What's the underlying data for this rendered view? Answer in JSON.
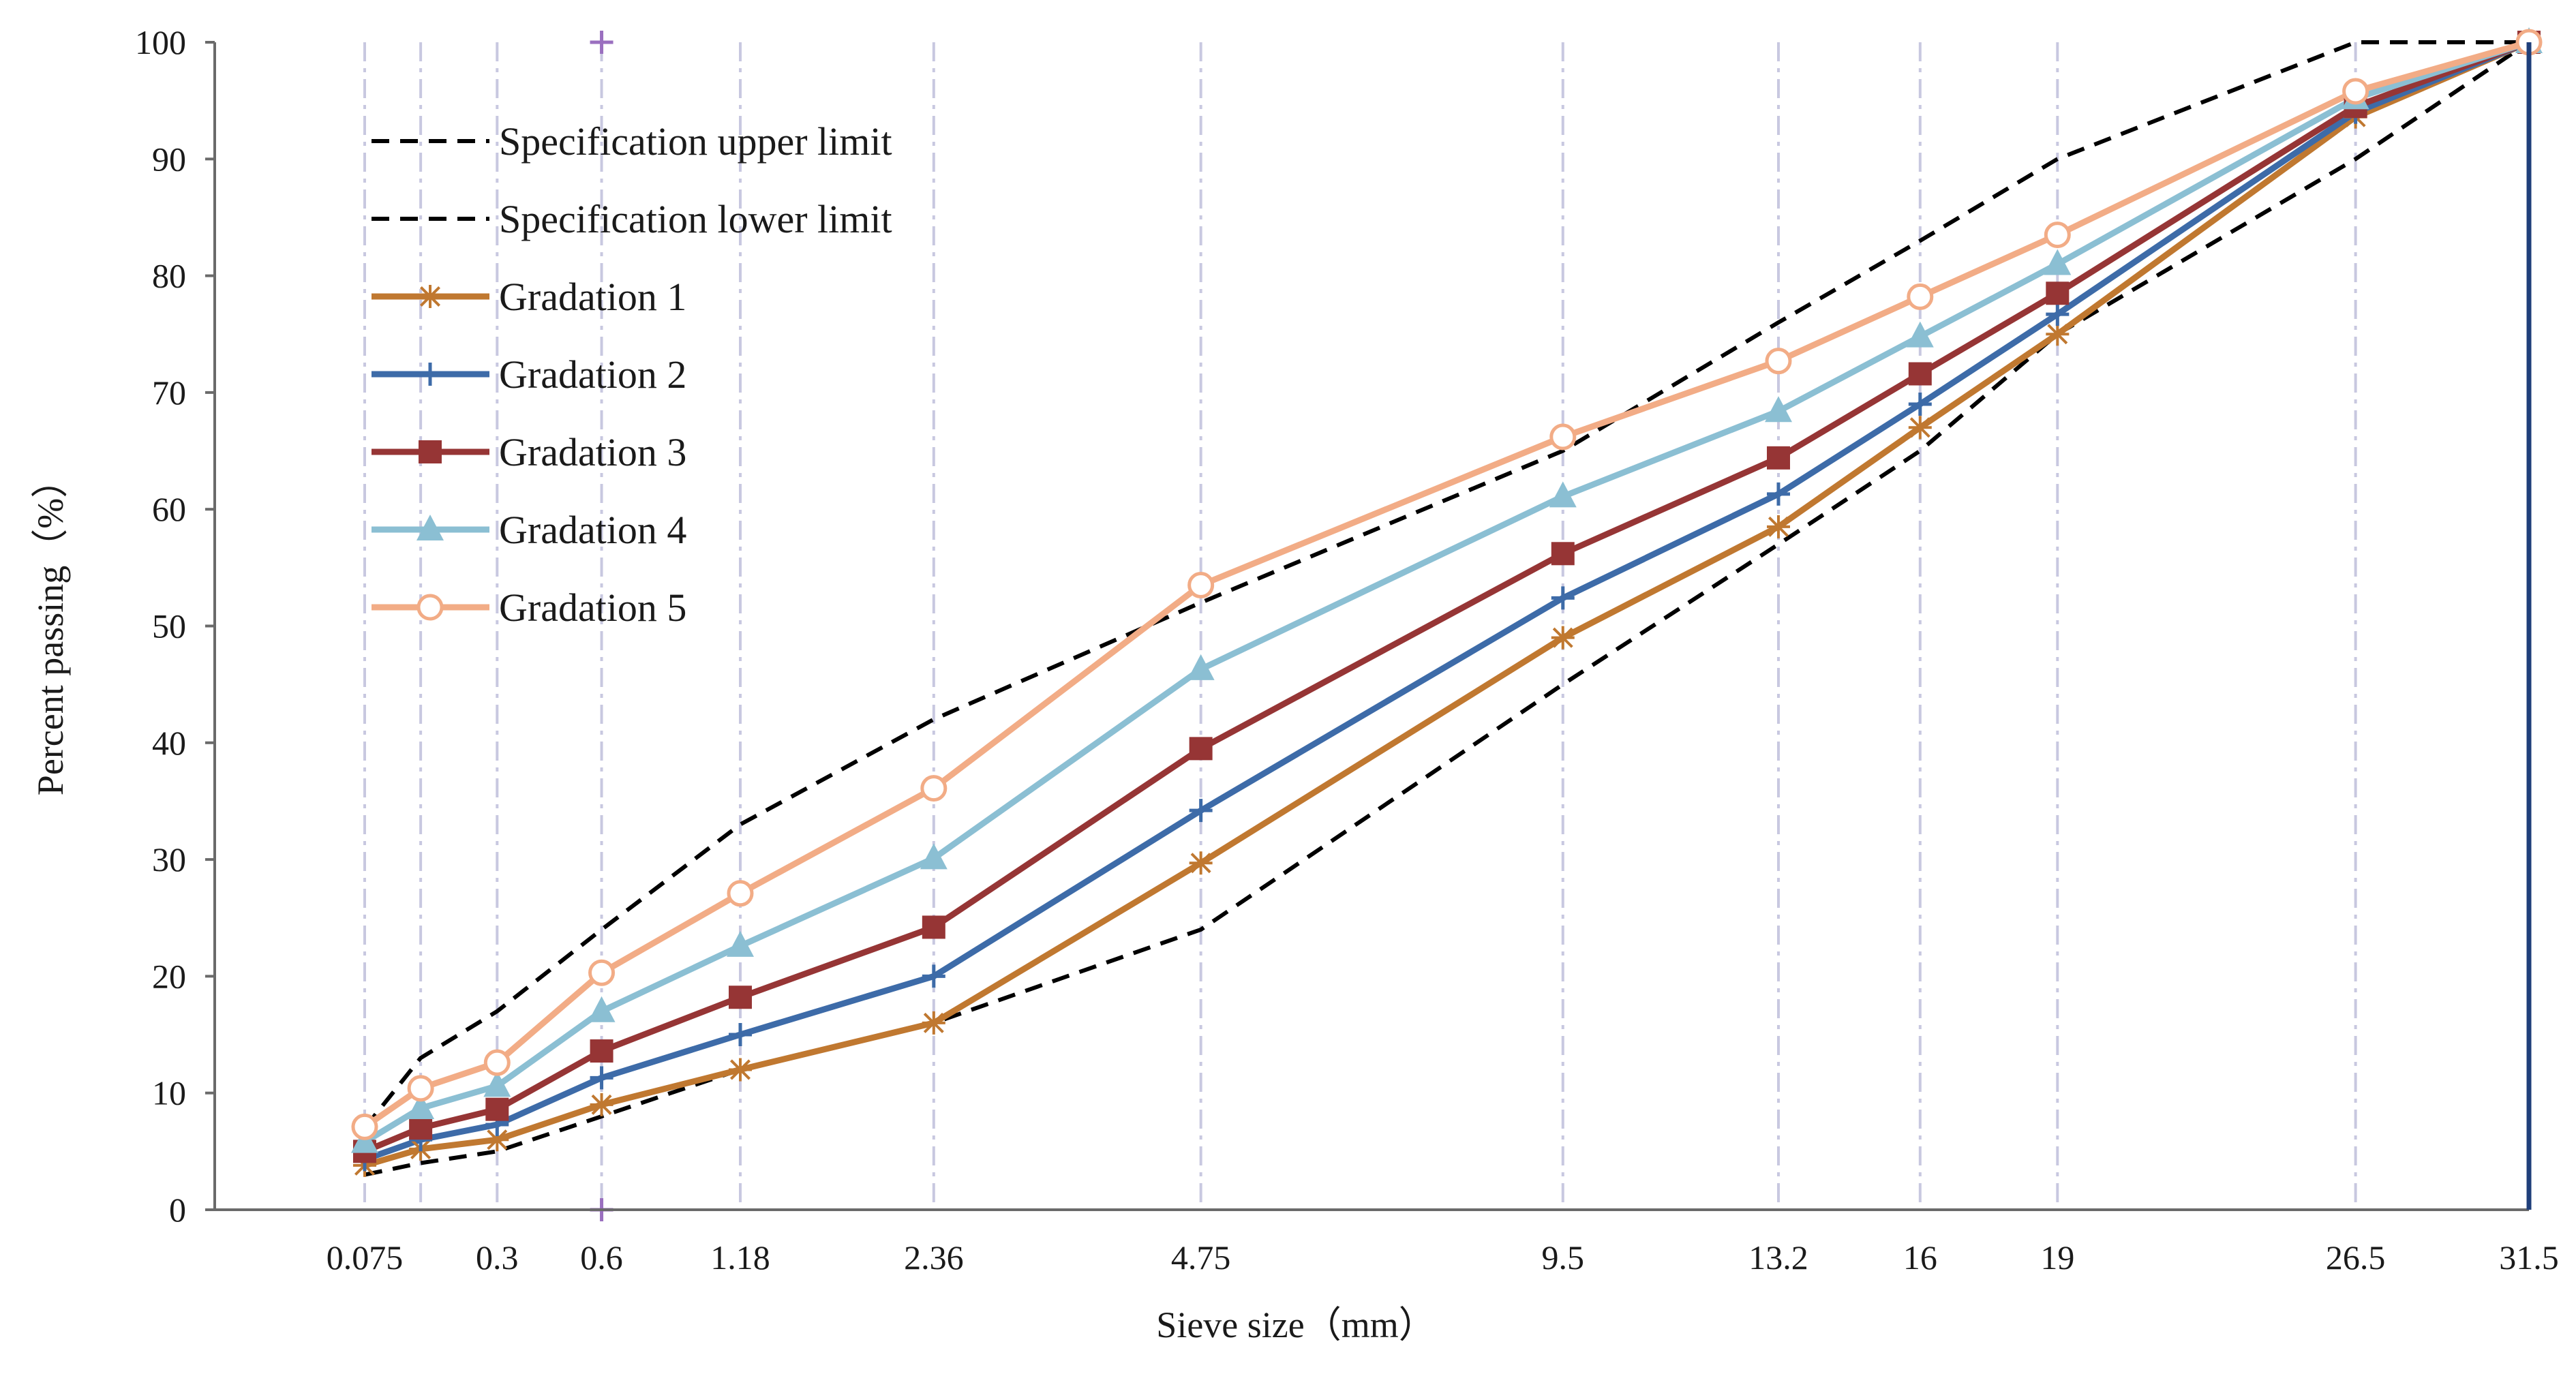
{
  "chart_data": {
    "type": "line",
    "title": "",
    "xlabel": "Sieve size（mm）",
    "ylabel": "Percent passing（%）",
    "ylim": [
      0,
      100
    ],
    "yticks": [
      "0",
      "10",
      "20",
      "30",
      "40",
      "50",
      "60",
      "70",
      "80",
      "90",
      "100"
    ],
    "x_scale": "power-0.45 (gradation chart)",
    "x_tick_labels": [
      "0.075",
      "0.3",
      "0.6",
      "1.18",
      "2.36",
      "4.75",
      "9.5",
      "13.2",
      "16",
      "19",
      "26.5",
      "31.5"
    ],
    "sieves": [
      0.075,
      0.15,
      0.3,
      0.6,
      1.18,
      2.36,
      4.75,
      9.5,
      13.2,
      16,
      19,
      26.5,
      31.5
    ],
    "series": [
      {
        "name": "Specification upper limit",
        "color": "#000000",
        "dash": true,
        "marker": "none",
        "values": [
          7,
          13,
          17,
          24,
          33,
          42,
          52,
          65,
          76,
          83,
          90,
          100,
          100
        ]
      },
      {
        "name": "Specification lower limit",
        "color": "#000000",
        "dash": true,
        "marker": "none",
        "values": [
          3,
          4,
          5,
          8,
          12,
          16,
          24,
          45,
          57,
          65,
          75,
          90,
          100
        ]
      },
      {
        "name": "Gradation 1",
        "color": "#C07830",
        "dash": false,
        "marker": "star",
        "values": [
          3.8,
          5.2,
          6,
          9,
          12,
          16,
          29.7,
          49,
          58.5,
          67,
          75,
          93.6,
          100
        ]
      },
      {
        "name": "Gradation 2",
        "color": "#3D6BA8",
        "dash": false,
        "marker": "plus",
        "values": [
          4.3,
          6,
          7.3,
          11.3,
          15,
          20,
          34.2,
          52.4,
          61.3,
          69,
          76.7,
          94,
          100
        ]
      },
      {
        "name": "Gradation 3",
        "color": "#963535",
        "dash": false,
        "marker": "square",
        "values": [
          5,
          7,
          8.6,
          13.6,
          18.2,
          24.2,
          39.5,
          56.2,
          64.4,
          71.6,
          78.5,
          94.5,
          100
        ]
      },
      {
        "name": "Gradation 4",
        "color": "#8BBFD3",
        "dash": false,
        "marker": "triangle",
        "values": [
          5.8,
          8.7,
          10.6,
          17,
          22.6,
          30.1,
          46.3,
          61.1,
          68.4,
          74.8,
          81,
          95.2,
          100
        ]
      },
      {
        "name": "Gradation 5",
        "color": "#F2AC86",
        "dash": false,
        "marker": "circle",
        "values": [
          7.1,
          10.4,
          12.6,
          20.3,
          27.1,
          36.1,
          53.5,
          66.2,
          72.7,
          78.2,
          83.5,
          95.8,
          100
        ]
      }
    ],
    "legend": "top-left, inside plot",
    "grid": "vertical dash-dot lines at each sieve size"
  }
}
